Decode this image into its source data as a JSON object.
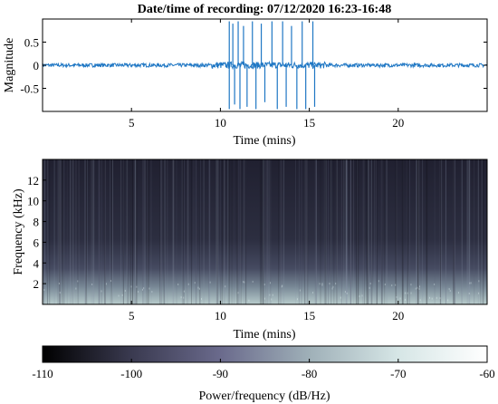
{
  "chart_data": [
    {
      "type": "line",
      "title": "Date/time of recording: 07/12/2020 16:23-16:48",
      "xlabel": "Time (mins)",
      "ylabel": "Magnitude",
      "xlim": [
        0,
        25
      ],
      "ylim": [
        -1,
        1
      ],
      "xticks": [
        5,
        10,
        15,
        20
      ],
      "yticks": [
        0.5,
        0,
        -0.5
      ],
      "ytick_labels": [
        "0.5",
        "0",
        "-0.5"
      ],
      "grid": false,
      "line_color": "#1f77c4",
      "noise_amplitude": 0.04,
      "spikes": [
        {
          "x": 10.5,
          "y": -0.95
        },
        {
          "x": 10.5,
          "y": 0.95
        },
        {
          "x": 10.7,
          "y": 0.9
        },
        {
          "x": 10.8,
          "y": -0.85
        },
        {
          "x": 11.0,
          "y": 0.95
        },
        {
          "x": 11.1,
          "y": -0.95
        },
        {
          "x": 11.3,
          "y": 0.85
        },
        {
          "x": 11.5,
          "y": -0.9
        },
        {
          "x": 11.8,
          "y": 0.95
        },
        {
          "x": 12.0,
          "y": -0.95
        },
        {
          "x": 12.3,
          "y": 0.9
        },
        {
          "x": 12.5,
          "y": -0.8
        },
        {
          "x": 12.9,
          "y": 0.95
        },
        {
          "x": 13.2,
          "y": -0.95
        },
        {
          "x": 13.5,
          "y": 0.95
        },
        {
          "x": 13.7,
          "y": -0.9
        },
        {
          "x": 14.0,
          "y": 0.85
        },
        {
          "x": 14.3,
          "y": -0.95
        },
        {
          "x": 14.6,
          "y": 0.95
        },
        {
          "x": 14.8,
          "y": -0.95
        },
        {
          "x": 15.2,
          "y": 0.95
        },
        {
          "x": 15.3,
          "y": -0.9
        }
      ]
    },
    {
      "type": "heatmap",
      "xlabel": "Time (mins)",
      "ylabel": "Frequency (kHz)",
      "xlim": [
        0,
        25
      ],
      "ylim": [
        0,
        14
      ],
      "xticks": [
        5,
        10,
        15,
        20
      ],
      "yticks": [
        2,
        4,
        6,
        8,
        10,
        12
      ],
      "colorbar": {
        "label": "Power/frequency (dB/Hz)",
        "range": [
          -110,
          -60
        ],
        "ticks": [
          -110,
          -100,
          -90,
          -80,
          -70,
          -60
        ],
        "colors": [
          "#000000",
          "#3a3a50",
          "#6a6a8c",
          "#9fb0b8",
          "#d6e6e6",
          "#ffffff"
        ]
      }
    }
  ]
}
